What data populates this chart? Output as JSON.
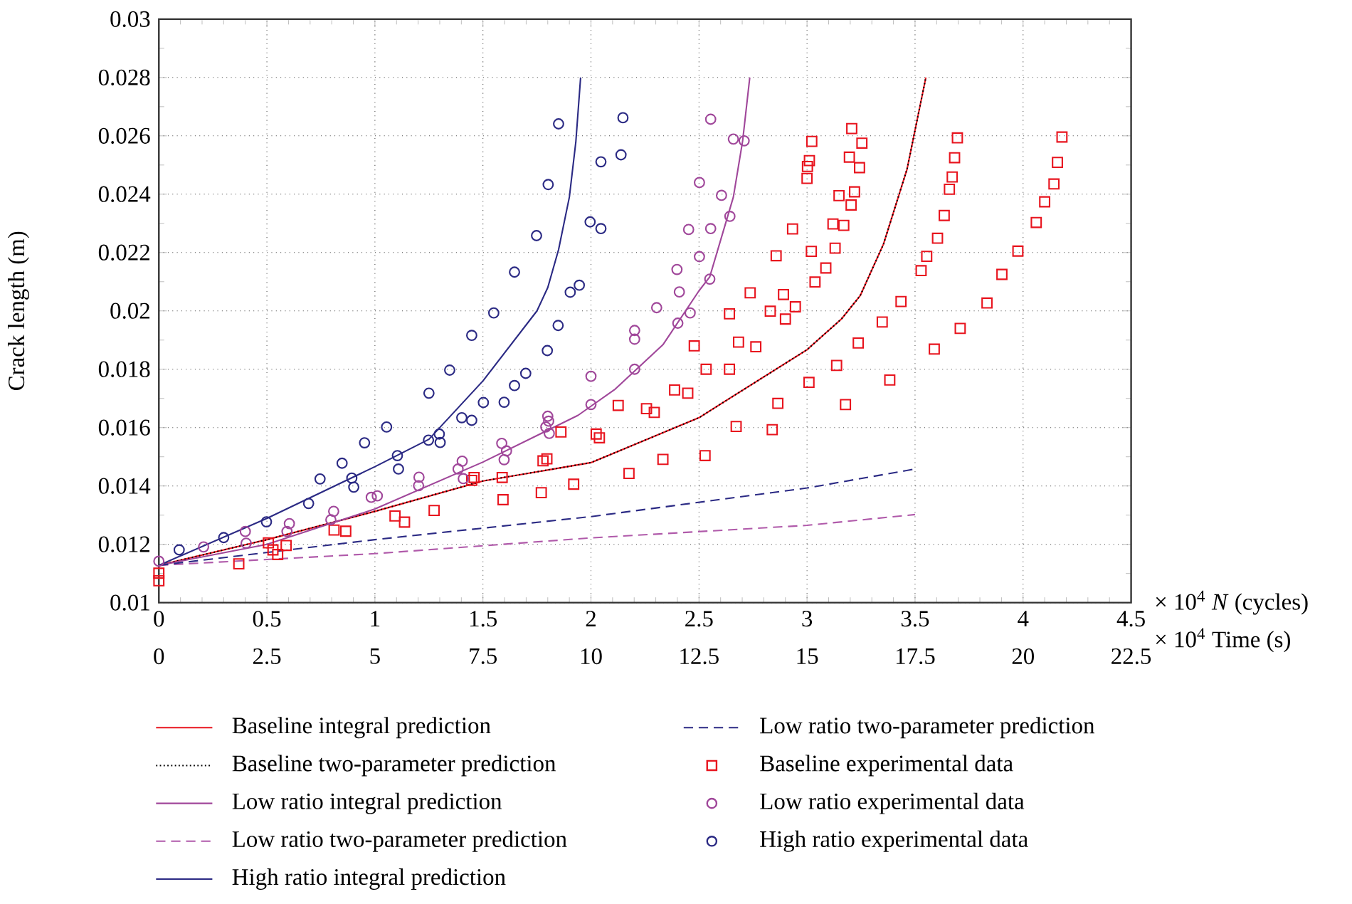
{
  "chart_data": {
    "type": "line",
    "xlabel": "× 10$^{4}$ *N* (cycles)",
    "x2label": "× 10$^{4}$ Time (s)",
    "ylabel": "Crack length (m)",
    "xlim": [
      0,
      4.5
    ],
    "xticks": [
      0,
      0.5,
      1,
      1.5,
      2,
      2.5,
      3,
      3.5,
      4,
      4.5
    ],
    "x2lim": [
      0,
      22.5
    ],
    "x2ticks": [
      0,
      2.5,
      5,
      7.5,
      10,
      12.5,
      15,
      17.5,
      20,
      22.5
    ],
    "ylim": [
      0.01,
      0.03
    ],
    "yticks": [
      0.01,
      0.012,
      0.014,
      0.016,
      0.018,
      0.02,
      0.022,
      0.024,
      0.026,
      0.028,
      0.03
    ],
    "grid": true,
    "legend": "bottom",
    "series": [
      {
        "name": "Baseline integral prediction",
        "color": "#e8141e",
        "marker": "none",
        "line_style": "solid",
        "x": [
          0,
          0.5,
          1,
          1.5,
          2,
          2.5,
          3,
          3.159,
          3.246,
          3.354,
          3.463,
          3.55
        ],
        "values": [
          0.01128,
          0.01216,
          0.01313,
          0.01417,
          0.0148,
          0.01634,
          0.01867,
          0.01972,
          0.02052,
          0.02229,
          0.02486,
          0.028
        ]
      },
      {
        "name": "Baseline two-parameter prediction",
        "color": "#000000",
        "marker": "none",
        "line_style": "dotted",
        "x": [
          0,
          0.5,
          1,
          1.5,
          2,
          2.5,
          3,
          3.159,
          3.246,
          3.354,
          3.463,
          3.55
        ],
        "values": [
          0.01128,
          0.01216,
          0.01313,
          0.01417,
          0.0148,
          0.01634,
          0.01867,
          0.01972,
          0.02052,
          0.02229,
          0.02486,
          0.028
        ]
      },
      {
        "name": "Low ratio integral prediction",
        "color": "#a0479a",
        "marker": "none",
        "line_style": "solid",
        "x": [
          0,
          0.5,
          1,
          1.5,
          1.94,
          2.109,
          2.333,
          2.5,
          2.55,
          2.659,
          2.702,
          2.735
        ],
        "values": [
          0.01128,
          0.012,
          0.01321,
          0.01482,
          0.01642,
          0.0173,
          0.01884,
          0.02069,
          0.02117,
          0.0239,
          0.02583,
          0.028
        ]
      },
      {
        "name": "Low ratio two-parameter prediction",
        "color": "#b05aaa",
        "marker": "none",
        "line_style": "dashed",
        "x": [
          0,
          1,
          2,
          3,
          3.5
        ],
        "values": [
          0.01128,
          0.01168,
          0.01222,
          0.01265,
          0.01302
        ]
      },
      {
        "name": "High ratio integral prediction",
        "color": "#2b2a84",
        "marker": "none",
        "line_style": "solid",
        "x": [
          0,
          0.5,
          1,
          1.25,
          1.5,
          1.75,
          1.8,
          1.85,
          1.9,
          1.93,
          1.952
        ],
        "values": [
          0.01128,
          0.01289,
          0.01466,
          0.0156,
          0.0176,
          0.02,
          0.0208,
          0.0221,
          0.0239,
          0.0258,
          0.028
        ]
      },
      {
        "name": "Low ratio two-parameter prediction",
        "color": "#2b2a84",
        "marker": "none",
        "line_style": "dashed",
        "x": [
          0,
          1,
          2,
          3,
          3.5
        ],
        "values": [
          0.01128,
          0.01216,
          0.01295,
          0.01393,
          0.01458
        ]
      },
      {
        "name": "Baseline experimental data",
        "type": "scatter",
        "color": "#e8141e",
        "marker": "square",
        "x": [
          0,
          0,
          0.37,
          0.507,
          0.528,
          0.55,
          0.589,
          0.811,
          0.865,
          1.093,
          1.137,
          1.274,
          1.448,
          1.459,
          1.593,
          1.589,
          1.77,
          1.778,
          1.796,
          1.861,
          1.92,
          2.024,
          2.039,
          2.126,
          2.176,
          2.257,
          2.293,
          2.333,
          2.387,
          2.448,
          2.478,
          2.528,
          2.533,
          2.641,
          2.641,
          2.672,
          2.683,
          2.737,
          2.763,
          2.83,
          2.839,
          2.857,
          2.865,
          2.891,
          2.9,
          2.933,
          2.946,
          3.0,
          3.002,
          3.011,
          3.009,
          3.02,
          3.022,
          3.037,
          3.087,
          3.12,
          3.13,
          3.137,
          3.148,
          3.17,
          3.178,
          3.196,
          3.204,
          3.207,
          3.22,
          3.237,
          3.243,
          3.254,
          3.348,
          3.383,
          3.435,
          3.528,
          3.554,
          3.589,
          3.604,
          3.635,
          3.659,
          3.672,
          3.683,
          3.696,
          3.709,
          3.833,
          3.902,
          3.976,
          4.061,
          4.1,
          4.143,
          4.159,
          4.18
        ],
        "values": [
          0.01101,
          0.01075,
          0.01133,
          0.01205,
          0.01181,
          0.01165,
          0.01196,
          0.01249,
          0.01245,
          0.01297,
          0.01276,
          0.01316,
          0.01419,
          0.01429,
          0.01353,
          0.01429,
          0.01377,
          0.01486,
          0.01493,
          0.01585,
          0.01406,
          0.01578,
          0.01565,
          0.01676,
          0.01443,
          0.01665,
          0.01652,
          0.01491,
          0.01729,
          0.01718,
          0.0188,
          0.01504,
          0.018,
          0.0199,
          0.018,
          0.01604,
          0.01893,
          0.02062,
          0.01877,
          0.01999,
          0.01593,
          0.02189,
          0.01683,
          0.02056,
          0.01972,
          0.02281,
          0.02014,
          0.02454,
          0.02495,
          0.02515,
          0.01755,
          0.02204,
          0.02581,
          0.02099,
          0.02147,
          0.02298,
          0.02215,
          0.01813,
          0.02395,
          0.02293,
          0.01679,
          0.02527,
          0.02363,
          0.02625,
          0.02408,
          0.0189,
          0.02491,
          0.02575,
          0.01962,
          0.01763,
          0.02032,
          0.02138,
          0.02187,
          0.01869,
          0.02249,
          0.02327,
          0.02417,
          0.02459,
          0.02525,
          0.02593,
          0.0194,
          0.02027,
          0.02125,
          0.02205,
          0.02303,
          0.02374,
          0.02435,
          0.02509,
          0.02596
        ]
      },
      {
        "name": "Low ratio experimental data",
        "type": "scatter",
        "color": "#a0479a",
        "marker": "circle",
        "x": [
          0,
          0.207,
          0.4,
          0.404,
          0.604,
          0.593,
          0.809,
          0.796,
          0.983,
          1.011,
          1.204,
          1.202,
          1.404,
          1.385,
          1.409,
          1.587,
          1.609,
          1.598,
          1.8,
          1.804,
          1.791,
          1.807,
          2.0,
          2.0,
          2.202,
          2.202,
          2.202,
          2.304,
          2.398,
          2.409,
          2.402,
          2.452,
          2.459,
          2.502,
          2.502,
          2.554,
          2.554,
          2.55,
          2.604,
          2.643,
          2.659,
          2.709
        ],
        "values": [
          0.01142,
          0.01191,
          0.01244,
          0.01204,
          0.01271,
          0.01244,
          0.01313,
          0.01284,
          0.01361,
          0.01366,
          0.0143,
          0.01401,
          0.01485,
          0.01458,
          0.01425,
          0.01546,
          0.0152,
          0.0149,
          0.01639,
          0.01622,
          0.01602,
          0.0158,
          0.01776,
          0.01679,
          0.01933,
          0.01903,
          0.018,
          0.02011,
          0.02142,
          0.02065,
          0.01958,
          0.02279,
          0.01993,
          0.0244,
          0.02186,
          0.02657,
          0.02282,
          0.02109,
          0.02396,
          0.02324,
          0.02589,
          0.02583
        ]
      },
      {
        "name": "High ratio experimental data",
        "type": "scatter",
        "color": "#2b2a84",
        "marker": "circle",
        "x": [
          0.094,
          0.3,
          0.498,
          0.693,
          0.746,
          0.848,
          0.893,
          0.902,
          0.952,
          1.054,
          1.104,
          1.109,
          1.25,
          1.248,
          1.298,
          1.302,
          1.346,
          1.402,
          1.448,
          1.448,
          1.502,
          1.55,
          1.598,
          1.646,
          1.646,
          1.698,
          1.748,
          1.798,
          1.802,
          1.848,
          1.85,
          1.904,
          1.946,
          1.996,
          2.046,
          2.046,
          2.148,
          2.139
        ],
        "values": [
          0.01181,
          0.01223,
          0.01277,
          0.0134,
          0.01424,
          0.01478,
          0.01427,
          0.01396,
          0.01548,
          0.01602,
          0.01504,
          0.01458,
          0.01718,
          0.01557,
          0.01578,
          0.01549,
          0.01797,
          0.01634,
          0.01916,
          0.01625,
          0.01686,
          0.01993,
          0.01687,
          0.02133,
          0.01744,
          0.01786,
          0.02258,
          0.01864,
          0.02433,
          0.0195,
          0.02641,
          0.02064,
          0.02088,
          0.02305,
          0.02282,
          0.02511,
          0.02662,
          0.02535
        ]
      }
    ]
  }
}
